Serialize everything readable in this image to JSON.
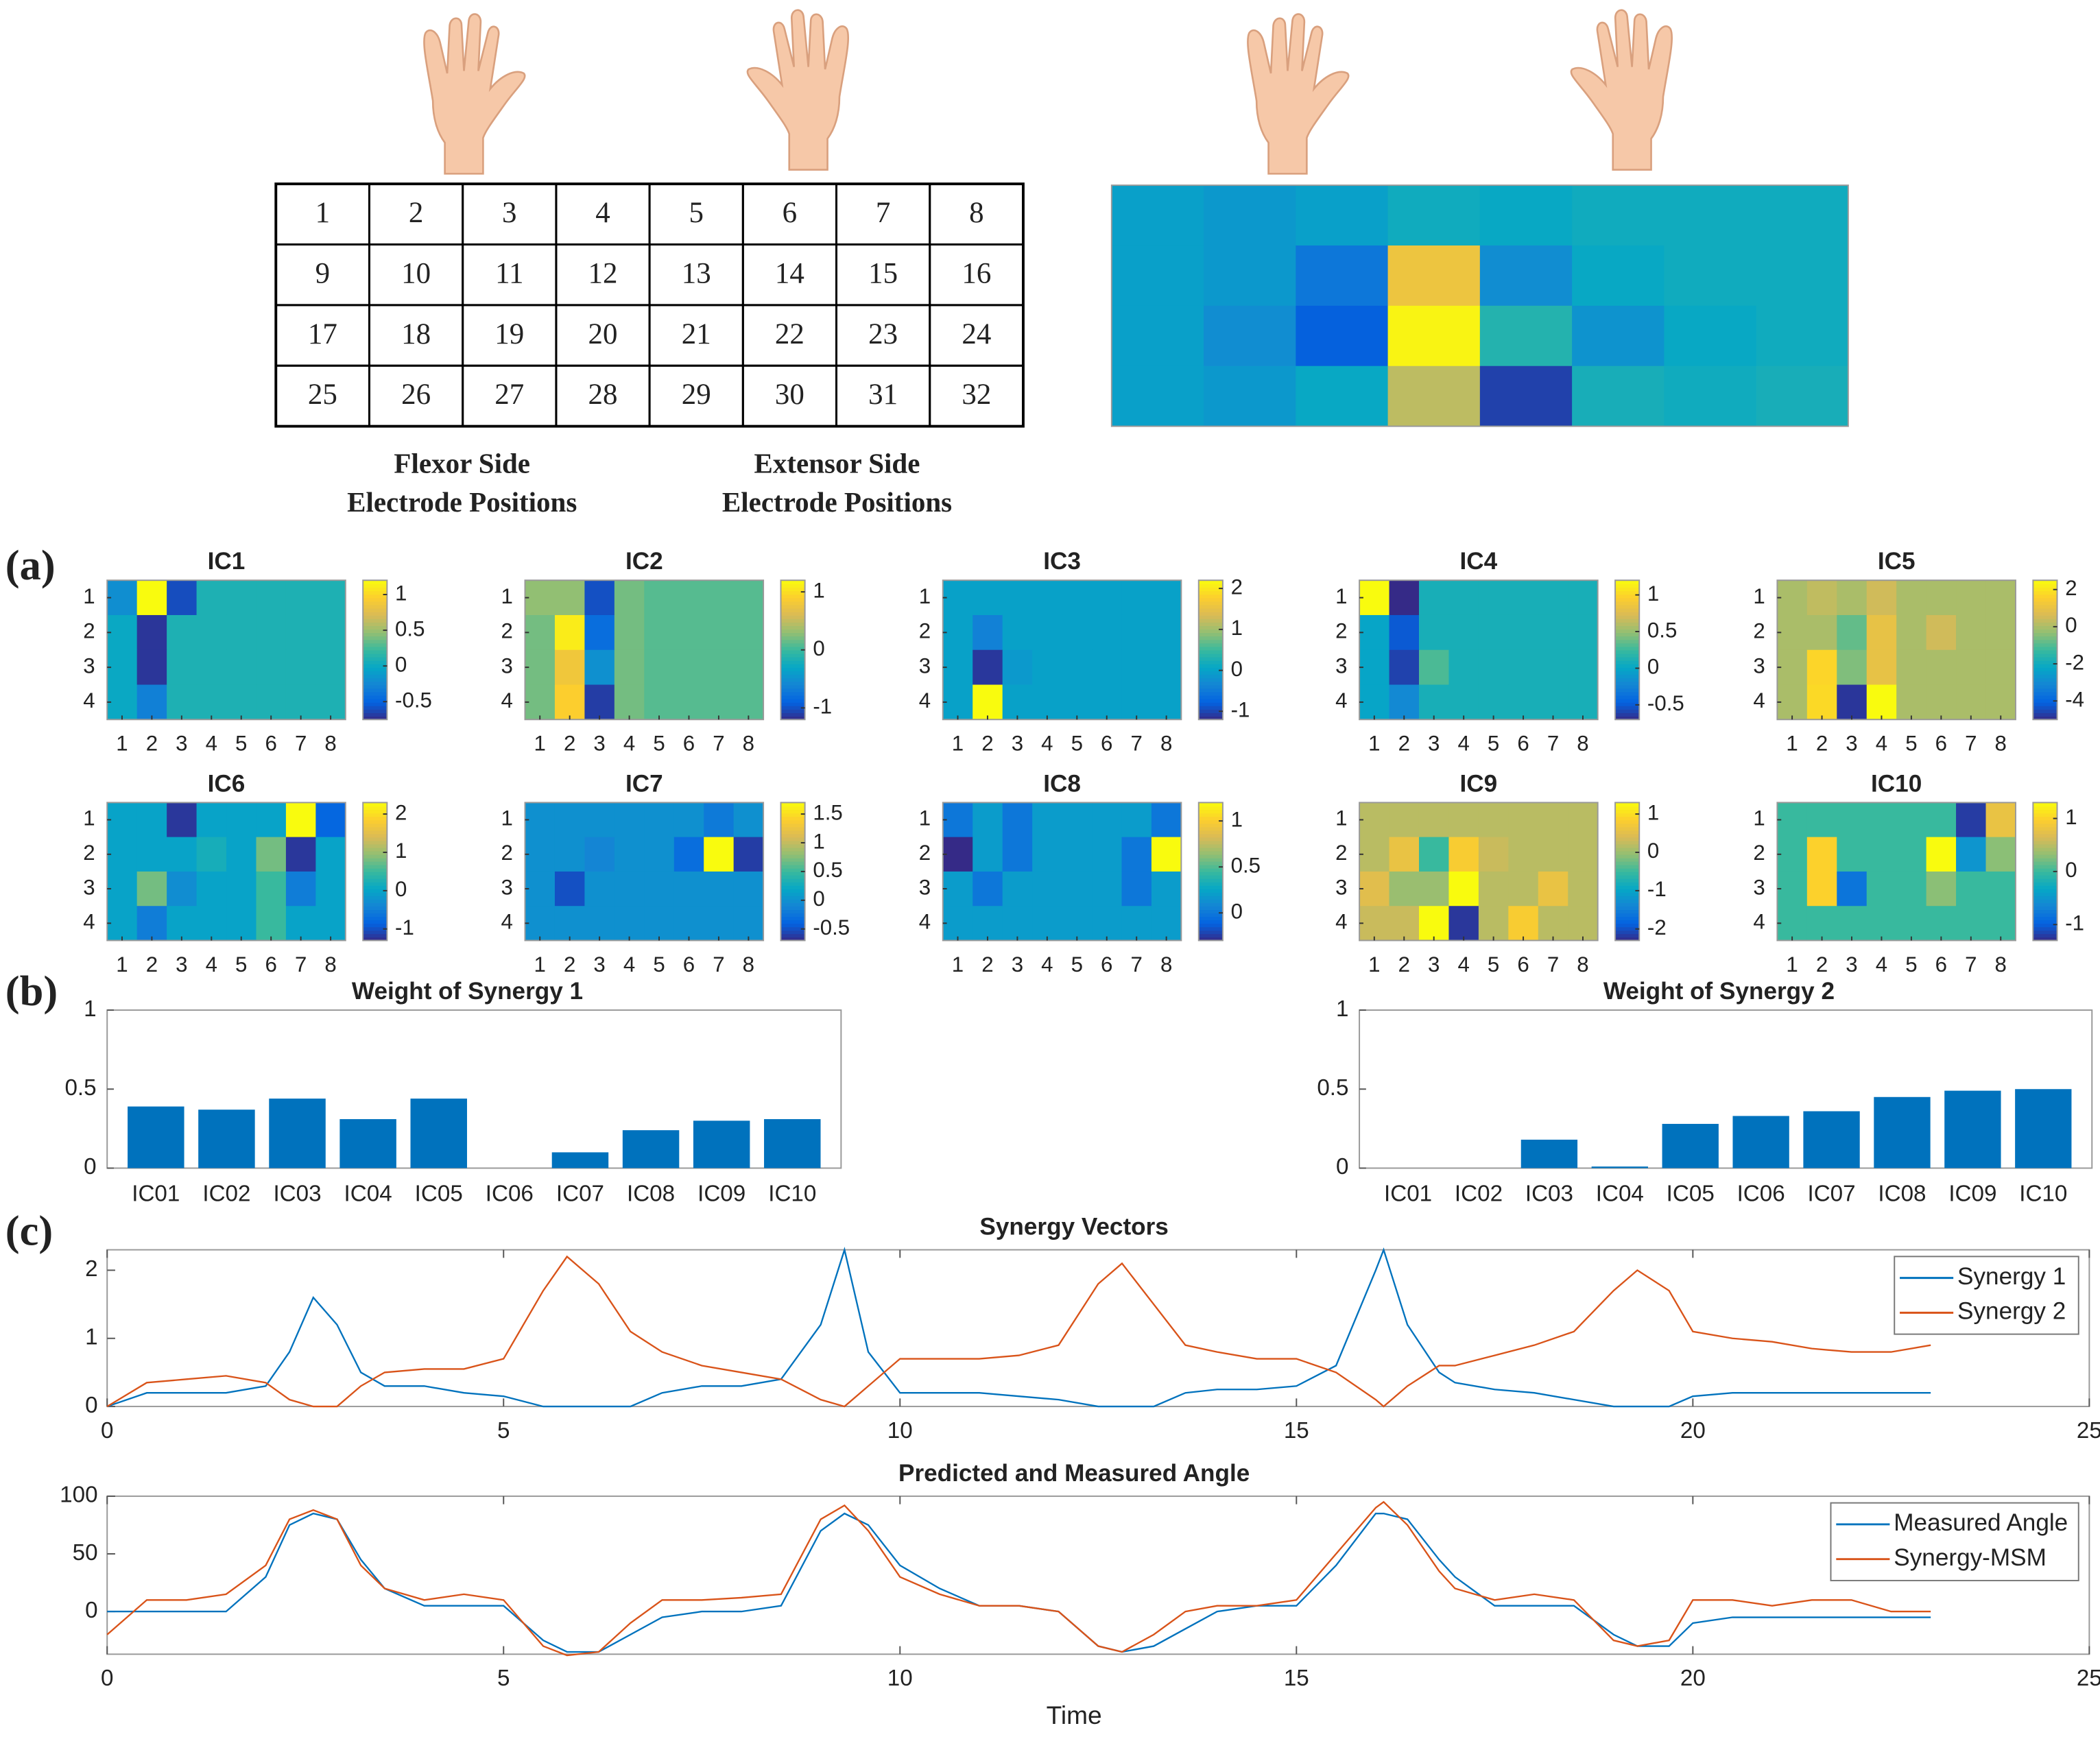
{
  "panel_labels": [
    "(a)",
    "(b)",
    "(c)"
  ],
  "electrode_table": {
    "rows": [
      [
        1,
        2,
        3,
        4,
        5,
        6,
        7,
        8
      ],
      [
        9,
        10,
        11,
        12,
        13,
        14,
        15,
        16
      ],
      [
        17,
        18,
        19,
        20,
        21,
        22,
        23,
        24
      ],
      [
        25,
        26,
        27,
        28,
        29,
        30,
        31,
        32
      ]
    ]
  },
  "flexor_label": [
    "Flexor Side",
    "Electrode Positions"
  ],
  "extensor_label": [
    "Extensor Side",
    "Electrode Positions"
  ],
  "chart_data": [
    {
      "type": "heatmap",
      "colormap": "parula",
      "clim": [
        0,
        1
      ],
      "values": [
        [
          0.35,
          0.32,
          0.35,
          0.4,
          0.38,
          0.4,
          0.4,
          0.4
        ],
        [
          0.35,
          0.32,
          0.2,
          0.82,
          0.28,
          0.38,
          0.4,
          0.4
        ],
        [
          0.35,
          0.28,
          0.12,
          0.98,
          0.45,
          0.3,
          0.38,
          0.4
        ],
        [
          0.35,
          0.32,
          0.38,
          0.7,
          0.05,
          0.42,
          0.4,
          0.42
        ]
      ]
    },
    {
      "type": "heatmap",
      "title": "IC1",
      "colormap": "parula",
      "clim": [
        -0.75,
        1.2
      ],
      "cticks": [
        -0.5,
        0,
        0.5,
        1
      ],
      "xticks": [
        1,
        2,
        3,
        4,
        5,
        6,
        7,
        8
      ],
      "yticks": [
        1,
        2,
        3,
        4
      ],
      "values": [
        [
          -0.2,
          1.2,
          -0.6,
          0.1,
          0.1,
          0.1,
          0.1,
          0.1
        ],
        [
          0,
          -0.7,
          0.1,
          0.1,
          0.1,
          0.1,
          0.1,
          0.1
        ],
        [
          0,
          -0.7,
          0.1,
          0.1,
          0.1,
          0.1,
          0.1,
          0.1
        ],
        [
          0,
          -0.3,
          0.1,
          0.1,
          0.1,
          0.1,
          0.1,
          0.1
        ]
      ]
    },
    {
      "type": "heatmap",
      "title": "IC2",
      "colormap": "parula",
      "clim": [
        -1.2,
        1.2
      ],
      "cticks": [
        -1,
        0,
        1
      ],
      "xticks": [
        1,
        2,
        3,
        4,
        5,
        6,
        7,
        8
      ],
      "yticks": [
        1,
        2,
        3,
        4
      ],
      "values": [
        [
          0.3,
          0.3,
          -1,
          0.2,
          0.1,
          0.1,
          0.1,
          0.1
        ],
        [
          0.2,
          1.1,
          -0.8,
          0.2,
          0.1,
          0.1,
          0.1,
          0.1
        ],
        [
          0.2,
          0.8,
          -0.5,
          0.2,
          0.1,
          0.1,
          0.1,
          0.1
        ],
        [
          0.2,
          0.9,
          -1.1,
          0.2,
          0.1,
          0.1,
          0.1,
          0.1
        ]
      ]
    },
    {
      "type": "heatmap",
      "title": "IC3",
      "colormap": "parula",
      "clim": [
        -1.2,
        2.2
      ],
      "cticks": [
        -1,
        0,
        1,
        2
      ],
      "xticks": [
        1,
        2,
        3,
        4,
        5,
        6,
        7,
        8
      ],
      "yticks": [
        1,
        2,
        3,
        4
      ],
      "values": [
        [
          0,
          0,
          0,
          0,
          0,
          0,
          0,
          0
        ],
        [
          0,
          -0.4,
          0,
          0,
          0,
          0,
          0,
          0
        ],
        [
          0,
          -1.1,
          -0.1,
          0,
          0,
          0,
          0,
          0
        ],
        [
          0,
          2.2,
          0,
          0,
          0,
          0,
          0,
          0
        ]
      ]
    },
    {
      "type": "heatmap",
      "title": "IC4",
      "colormap": "parula",
      "clim": [
        -0.7,
        1.2
      ],
      "cticks": [
        -0.5,
        0,
        0.5,
        1
      ],
      "xticks": [
        1,
        2,
        3,
        4,
        5,
        6,
        7,
        8
      ],
      "yticks": [
        1,
        2,
        3,
        4
      ],
      "values": [
        [
          1.2,
          -0.7,
          0.1,
          0.1,
          0.1,
          0.1,
          0.1,
          0.1
        ],
        [
          0,
          -0.5,
          0.1,
          0.1,
          0.1,
          0.1,
          0.1,
          0.1
        ],
        [
          0,
          -0.6,
          0.3,
          0.1,
          0.1,
          0.1,
          0.1,
          0.1
        ],
        [
          0,
          -0.2,
          0.1,
          0.1,
          0.1,
          0.1,
          0.1,
          0.1
        ]
      ]
    },
    {
      "type": "heatmap",
      "title": "IC5",
      "colormap": "parula",
      "clim": [
        -5,
        2.5
      ],
      "cticks": [
        -4,
        -2,
        0,
        2
      ],
      "xticks": [
        1,
        2,
        3,
        4,
        5,
        6,
        7,
        8
      ],
      "yticks": [
        1,
        2,
        3,
        4
      ],
      "values": [
        [
          0,
          0.3,
          0,
          0.5,
          0,
          0,
          0,
          0
        ],
        [
          0,
          0,
          -0.8,
          1,
          0,
          0.5,
          0,
          0
        ],
        [
          0,
          1.7,
          -0.5,
          1,
          0,
          0,
          0,
          0
        ],
        [
          0,
          1.8,
          -4.8,
          2.5,
          0,
          0,
          0,
          0
        ]
      ]
    },
    {
      "type": "heatmap",
      "title": "IC6",
      "colormap": "parula",
      "clim": [
        -1.3,
        2.3
      ],
      "cticks": [
        -1,
        0,
        1,
        2
      ],
      "xticks": [
        1,
        2,
        3,
        4,
        5,
        6,
        7,
        8
      ],
      "yticks": [
        1,
        2,
        3,
        4
      ],
      "values": [
        [
          0,
          0,
          -1.2,
          0,
          0,
          0,
          2.3,
          -0.8
        ],
        [
          0,
          0,
          0,
          0.2,
          0,
          0.8,
          -1.2,
          0
        ],
        [
          0,
          0.8,
          -0.3,
          0,
          0,
          0.5,
          -0.5,
          0
        ],
        [
          0,
          -0.5,
          0,
          0,
          0,
          0.5,
          0,
          0
        ]
      ]
    },
    {
      "type": "heatmap",
      "title": "IC7",
      "colormap": "parula",
      "clim": [
        -0.7,
        1.7
      ],
      "cticks": [
        -0.5,
        0,
        0.5,
        1,
        1.5
      ],
      "xticks": [
        1,
        2,
        3,
        4,
        5,
        6,
        7,
        8
      ],
      "yticks": [
        1,
        2,
        3,
        4
      ],
      "values": [
        [
          0,
          0,
          0,
          0,
          0,
          0,
          -0.2,
          0
        ],
        [
          0,
          0,
          -0.1,
          0,
          0,
          -0.3,
          1.7,
          -0.6
        ],
        [
          0,
          -0.5,
          0,
          0,
          0,
          0,
          0,
          0
        ],
        [
          0,
          0,
          0,
          0,
          0,
          0,
          0,
          0
        ]
      ]
    },
    {
      "type": "heatmap",
      "title": "IC8",
      "colormap": "parula",
      "clim": [
        -0.3,
        1.2
      ],
      "cticks": [
        0,
        0.5,
        1
      ],
      "xticks": [
        1,
        2,
        3,
        4,
        5,
        6,
        7,
        8
      ],
      "yticks": [
        1,
        2,
        3,
        4
      ],
      "values": [
        [
          0,
          0.2,
          0,
          0.2,
          0.2,
          0.2,
          0.2,
          0
        ],
        [
          -0.3,
          0.2,
          0,
          0.2,
          0.2,
          0.2,
          0,
          1.2
        ],
        [
          0.2,
          0,
          0.2,
          0.2,
          0.2,
          0.2,
          0,
          0.2
        ],
        [
          0.2,
          0.2,
          0.2,
          0.2,
          0.2,
          0.2,
          0.2,
          0.2
        ]
      ]
    },
    {
      "type": "heatmap",
      "title": "IC9",
      "colormap": "parula",
      "clim": [
        -2.3,
        1.3
      ],
      "cticks": [
        -2,
        -1,
        0,
        1
      ],
      "xticks": [
        1,
        2,
        3,
        4,
        5,
        6,
        7,
        8
      ],
      "yticks": [
        1,
        2,
        3,
        4
      ],
      "values": [
        [
          0.2,
          0.2,
          0.2,
          0.2,
          0.2,
          0.2,
          0.2,
          0.2
        ],
        [
          0.2,
          0.6,
          -0.5,
          0.8,
          0.3,
          0.2,
          0.2,
          0.2
        ],
        [
          0.5,
          0,
          0,
          1.3,
          0.2,
          0.2,
          0.6,
          0.2
        ],
        [
          0.3,
          0.3,
          1.3,
          -2.2,
          0.2,
          0.8,
          0.2,
          0.2
        ]
      ]
    },
    {
      "type": "heatmap",
      "title": "IC10",
      "colormap": "parula",
      "clim": [
        -1.3,
        1.3
      ],
      "cticks": [
        -1,
        0,
        1
      ],
      "xticks": [
        1,
        2,
        3,
        4,
        5,
        6,
        7,
        8
      ],
      "yticks": [
        1,
        2,
        3,
        4
      ],
      "values": [
        [
          0,
          0,
          0,
          0,
          0,
          0,
          -1.2,
          0.8
        ],
        [
          0,
          1,
          0,
          0,
          0,
          1.3,
          -0.5,
          0.3
        ],
        [
          0,
          1,
          -0.8,
          0,
          0,
          0.3,
          0,
          0
        ],
        [
          0,
          0,
          0,
          0,
          0,
          0,
          0,
          0
        ]
      ]
    },
    {
      "type": "bar",
      "title": "Weight of Synergy 1",
      "color": "#0072bd",
      "categories": [
        "IC01",
        "IC02",
        "IC03",
        "IC04",
        "IC05",
        "IC06",
        "IC07",
        "IC08",
        "IC09",
        "IC10"
      ],
      "values": [
        0.39,
        0.37,
        0.44,
        0.31,
        0.44,
        0,
        0.1,
        0.24,
        0.3,
        0.31
      ],
      "ylim": [
        0,
        1
      ],
      "yticks": [
        0,
        0.5,
        1
      ]
    },
    {
      "type": "bar",
      "title": "Weight of Synergy 2",
      "color": "#0072bd",
      "categories": [
        "IC01",
        "IC02",
        "IC03",
        "IC04",
        "IC05",
        "IC06",
        "IC07",
        "IC08",
        "IC09",
        "IC10"
      ],
      "values": [
        0,
        0,
        0.18,
        0.01,
        0.28,
        0.33,
        0.36,
        0.45,
        0.49,
        0.5
      ],
      "ylim": [
        0,
        1
      ],
      "yticks": [
        0,
        0.5,
        1
      ]
    },
    {
      "type": "line",
      "title": "Synergy Vectors",
      "legend": "upper right",
      "x": [
        0,
        0.5,
        1,
        1.5,
        2,
        2.3,
        2.6,
        2.9,
        3.2,
        3.5,
        4,
        4.5,
        5,
        5.5,
        5.8,
        6.2,
        6.6,
        7,
        7.5,
        8,
        8.5,
        9,
        9.3,
        9.6,
        10,
        10.5,
        11,
        11.5,
        12,
        12.5,
        12.8,
        13.2,
        13.6,
        14,
        14.5,
        15,
        15.5,
        16,
        16.1,
        16.4,
        16.8,
        17,
        17.5,
        18,
        18.5,
        19,
        19.3,
        19.7,
        20,
        20.5,
        21,
        21.5,
        22,
        22.5,
        23
      ],
      "xlim": [
        0,
        25
      ],
      "xticks": [
        0,
        5,
        10,
        15,
        20,
        25
      ],
      "ylim": [
        0,
        2.3
      ],
      "yticks": [
        0,
        1,
        2
      ],
      "series": [
        {
          "name": "Synergy 1",
          "color": "#0072bd",
          "values": [
            0,
            0.2,
            0.2,
            0.2,
            0.3,
            0.8,
            1.6,
            1.2,
            0.5,
            0.3,
            0.3,
            0.2,
            0.15,
            0,
            0,
            0,
            0,
            0.2,
            0.3,
            0.3,
            0.4,
            1.2,
            2.3,
            0.8,
            0.2,
            0.2,
            0.2,
            0.15,
            0.1,
            0,
            0,
            0,
            0.2,
            0.25,
            0.25,
            0.3,
            0.6,
            2,
            2.3,
            1.2,
            0.5,
            0.35,
            0.25,
            0.2,
            0.1,
            0,
            0,
            0,
            0.15,
            0.2,
            0.2,
            0.2,
            0.2,
            0.2,
            0.2
          ]
        },
        {
          "name": "Synergy 2",
          "color": "#d95319",
          "values": [
            0,
            0.35,
            0.4,
            0.45,
            0.35,
            0.1,
            0,
            0,
            0.3,
            0.5,
            0.55,
            0.55,
            0.7,
            1.7,
            2.2,
            1.8,
            1.1,
            0.8,
            0.6,
            0.5,
            0.4,
            0.1,
            0,
            0.3,
            0.7,
            0.7,
            0.7,
            0.75,
            0.9,
            1.8,
            2.1,
            1.5,
            0.9,
            0.8,
            0.7,
            0.7,
            0.5,
            0.1,
            0,
            0.3,
            0.6,
            0.6,
            0.75,
            0.9,
            1.1,
            1.7,
            2,
            1.7,
            1.1,
            1,
            0.95,
            0.85,
            0.8,
            0.8,
            0.9
          ]
        }
      ]
    },
    {
      "type": "line",
      "title": "Predicted and Measured Angle",
      "xlabel": "Time",
      "legend": "upper right",
      "x": [
        0,
        0.5,
        1,
        1.5,
        2,
        2.3,
        2.6,
        2.9,
        3.2,
        3.5,
        4,
        4.5,
        5,
        5.5,
        5.8,
        6.2,
        6.6,
        7,
        7.5,
        8,
        8.5,
        9,
        9.3,
        9.6,
        10,
        10.5,
        11,
        11.5,
        12,
        12.5,
        12.8,
        13.2,
        13.6,
        14,
        14.5,
        15,
        15.5,
        16,
        16.1,
        16.4,
        16.8,
        17,
        17.5,
        18,
        18.5,
        19,
        19.3,
        19.7,
        20,
        20.5,
        21,
        21.5,
        22,
        22.5,
        23
      ],
      "xlim": [
        0,
        25
      ],
      "xticks": [
        0,
        5,
        10,
        15,
        20,
        25
      ],
      "ylim": [
        -37,
        100
      ],
      "yticks": [
        0,
        50,
        100
      ],
      "series": [
        {
          "name": "Measured Angle",
          "color": "#0072bd",
          "values": [
            0,
            0,
            0,
            0,
            30,
            75,
            85,
            80,
            45,
            20,
            5,
            5,
            5,
            -25,
            -35,
            -35,
            -20,
            -5,
            0,
            0,
            5,
            70,
            85,
            75,
            40,
            20,
            5,
            5,
            0,
            -30,
            -35,
            -30,
            -15,
            0,
            5,
            5,
            40,
            85,
            85,
            80,
            45,
            30,
            5,
            5,
            5,
            -20,
            -30,
            -30,
            -10,
            -5,
            -5,
            -5,
            -5,
            -5,
            -5
          ]
        },
        {
          "name": "Synergy-MSM",
          "color": "#d95319",
          "values": [
            -20,
            10,
            10,
            15,
            40,
            80,
            88,
            80,
            40,
            20,
            10,
            15,
            10,
            -30,
            -38,
            -35,
            -10,
            10,
            10,
            12,
            15,
            80,
            92,
            70,
            30,
            15,
            5,
            5,
            0,
            -30,
            -35,
            -20,
            0,
            5,
            5,
            10,
            50,
            90,
            95,
            75,
            35,
            20,
            10,
            15,
            10,
            -25,
            -30,
            -25,
            10,
            10,
            5,
            10,
            10,
            0,
            0
          ]
        }
      ]
    }
  ]
}
